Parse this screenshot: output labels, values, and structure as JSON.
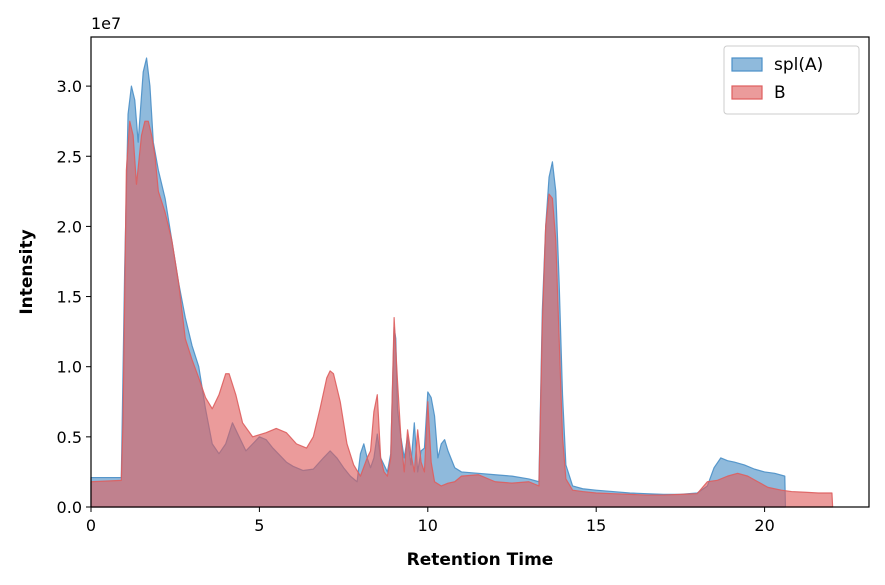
{
  "chart_data": {
    "type": "area",
    "title": "",
    "xlabel": "Retention Time",
    "ylabel": "Intensity",
    "y_offset_label": "1e7",
    "xlim": [
      0,
      23.1
    ],
    "ylim": [
      0,
      33500000
    ],
    "x_ticks": [
      0,
      5,
      10,
      15,
      20
    ],
    "y_ticks": [
      0,
      5000000,
      10000000,
      15000000,
      20000000,
      25000000,
      30000000
    ],
    "y_tick_labels": [
      "0.0",
      "0.5",
      "1.0",
      "1.5",
      "2.0",
      "2.5",
      "3.0"
    ],
    "grid": false,
    "legend_position": "top-right",
    "series": [
      {
        "name": "spl(A)",
        "color": "#4a8fc7",
        "x": [
          0.0,
          0.9,
          1.0,
          1.1,
          1.2,
          1.3,
          1.4,
          1.55,
          1.65,
          1.75,
          1.85,
          2.0,
          2.2,
          2.4,
          2.6,
          2.8,
          3.0,
          3.2,
          3.4,
          3.6,
          3.8,
          4.0,
          4.2,
          4.4,
          4.6,
          4.8,
          5.0,
          5.2,
          5.4,
          5.6,
          5.8,
          6.0,
          6.3,
          6.6,
          6.9,
          7.1,
          7.3,
          7.5,
          7.7,
          7.9,
          8.0,
          8.1,
          8.2,
          8.3,
          8.4,
          8.5,
          8.6,
          8.7,
          8.8,
          8.9,
          9.0,
          9.05,
          9.1,
          9.2,
          9.3,
          9.4,
          9.5,
          9.6,
          9.7,
          9.8,
          9.9,
          10.0,
          10.1,
          10.2,
          10.3,
          10.4,
          10.5,
          10.6,
          10.8,
          11.0,
          11.5,
          12.0,
          12.5,
          13.0,
          13.3,
          13.4,
          13.5,
          13.6,
          13.7,
          13.8,
          13.9,
          14.0,
          14.1,
          14.3,
          14.6,
          15.0,
          15.5,
          16.0,
          16.5,
          17.0,
          17.5,
          18.0,
          18.3,
          18.5,
          18.7,
          18.9,
          19.1,
          19.4,
          19.7,
          20.0,
          20.3,
          20.6,
          20.62
        ],
        "y": [
          2100000,
          2100000,
          17000000,
          28000000,
          30000000,
          29000000,
          26000000,
          31000000,
          32000000,
          30000000,
          26000000,
          24000000,
          22000000,
          19000000,
          16000000,
          13500000,
          11500000,
          10000000,
          7000000,
          4500000,
          3800000,
          4500000,
          6000000,
          5000000,
          4000000,
          4500000,
          5000000,
          4800000,
          4200000,
          3700000,
          3200000,
          2900000,
          2600000,
          2700000,
          3500000,
          4000000,
          3500000,
          2800000,
          2200000,
          1800000,
          3800000,
          4500000,
          3500000,
          2800000,
          3500000,
          5200000,
          3500000,
          3000000,
          2500000,
          3800000,
          12800000,
          12000000,
          7000000,
          5000000,
          3500000,
          5000000,
          3000000,
          6000000,
          2500000,
          4000000,
          4200000,
          8200000,
          7800000,
          6500000,
          3500000,
          4500000,
          4800000,
          4000000,
          2800000,
          2500000,
          2400000,
          2300000,
          2200000,
          2000000,
          1800000,
          14000000,
          20000000,
          23500000,
          24600000,
          22500000,
          16000000,
          8000000,
          3000000,
          1500000,
          1300000,
          1200000,
          1100000,
          1000000,
          950000,
          900000,
          900000,
          1000000,
          1500000,
          2800000,
          3500000,
          3300000,
          3200000,
          3000000,
          2700000,
          2500000,
          2400000,
          2200000,
          0
        ]
      },
      {
        "name": "B",
        "color": "#de5e5e",
        "x": [
          0.0,
          0.9,
          0.95,
          1.05,
          1.15,
          1.25,
          1.35,
          1.5,
          1.6,
          1.7,
          1.8,
          1.9,
          2.0,
          2.2,
          2.4,
          2.6,
          2.8,
          3.0,
          3.2,
          3.4,
          3.6,
          3.8,
          4.0,
          4.1,
          4.3,
          4.5,
          4.8,
          5.2,
          5.5,
          5.8,
          6.1,
          6.4,
          6.6,
          6.8,
          7.0,
          7.1,
          7.2,
          7.4,
          7.6,
          7.8,
          8.0,
          8.2,
          8.3,
          8.4,
          8.5,
          8.6,
          8.7,
          8.8,
          8.9,
          9.0,
          9.1,
          9.2,
          9.3,
          9.4,
          9.5,
          9.6,
          9.7,
          9.8,
          9.9,
          10.0,
          10.1,
          10.2,
          10.4,
          10.6,
          10.8,
          11.0,
          11.5,
          12.0,
          12.5,
          13.0,
          13.3,
          13.4,
          13.5,
          13.6,
          13.7,
          13.8,
          13.9,
          14.0,
          14.1,
          14.3,
          14.6,
          15.0,
          15.5,
          16.0,
          16.5,
          17.0,
          17.5,
          18.0,
          18.3,
          18.6,
          18.9,
          19.2,
          19.5,
          19.8,
          20.1,
          20.5,
          20.8,
          21.2,
          21.6,
          22.0,
          22.02
        ],
        "y": [
          1800000,
          1900000,
          6000000,
          24000000,
          27500000,
          26500000,
          23000000,
          26500000,
          27500000,
          27500000,
          26500000,
          25000000,
          22500000,
          21000000,
          19000000,
          16000000,
          12000000,
          10500000,
          9200000,
          7800000,
          7000000,
          8000000,
          9500000,
          9500000,
          8000000,
          6000000,
          5000000,
          5300000,
          5600000,
          5300000,
          4500000,
          4200000,
          5000000,
          7000000,
          9200000,
          9700000,
          9500000,
          7500000,
          4500000,
          3000000,
          2200000,
          3500000,
          4000000,
          6800000,
          8000000,
          3500000,
          2500000,
          2200000,
          3500000,
          13500000,
          9000000,
          5000000,
          2500000,
          5500000,
          3800000,
          2500000,
          5500000,
          3200000,
          2500000,
          7500000,
          3200000,
          1800000,
          1500000,
          1700000,
          1800000,
          2200000,
          2300000,
          1800000,
          1700000,
          1800000,
          1500000,
          13000000,
          20000000,
          22300000,
          22000000,
          19000000,
          12000000,
          5000000,
          2000000,
          1200000,
          1100000,
          1000000,
          950000,
          900000,
          850000,
          850000,
          900000,
          950000,
          1800000,
          1900000,
          2200000,
          2400000,
          2200000,
          1800000,
          1400000,
          1200000,
          1100000,
          1050000,
          1000000,
          1000000,
          0
        ]
      }
    ]
  }
}
